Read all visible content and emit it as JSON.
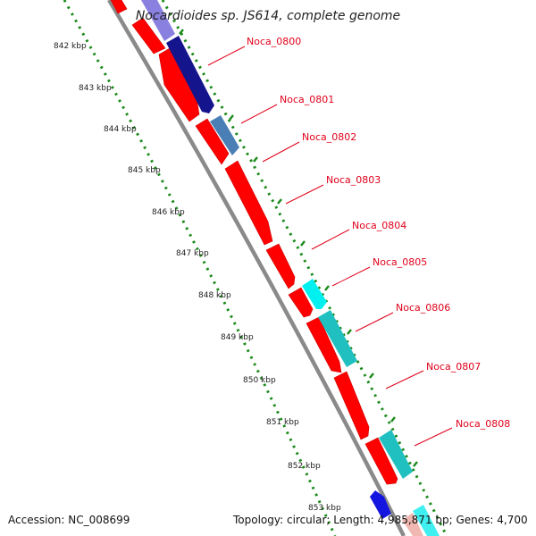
{
  "title": "Nocardioides sp. JS614, complete genome",
  "footer": {
    "accession": "Accession: NC_008699",
    "summary": "Topology: circular; Length: 4,985,871 bp; Genes: 4,700"
  },
  "scale_ticks": [
    "842 kbp",
    "843 kbp",
    "844 kbp",
    "845 kbp",
    "846 kbp",
    "847 kbp",
    "848 kbp",
    "849 kbp",
    "850 kbp",
    "851 kbp",
    "852 kbp",
    "853 kbp"
  ],
  "gene_labels": [
    "Noca_0800",
    "Noca_0801",
    "Noca_0802",
    "Noca_0803",
    "Noca_0804",
    "Noca_0805",
    "Noca_0806",
    "Noca_0807",
    "Noca_0808"
  ],
  "colors": {
    "backbone": "#8a8a8a",
    "gene_red": "#ff0000",
    "label_red": "#e0001a",
    "navy": "#14148c",
    "steel_blue": "#4a7fb5",
    "cyan": "#00f0f0",
    "teal": "#20c0c0",
    "lavender": "#8a80e0",
    "dotted_green": "#1a8a1a"
  }
}
